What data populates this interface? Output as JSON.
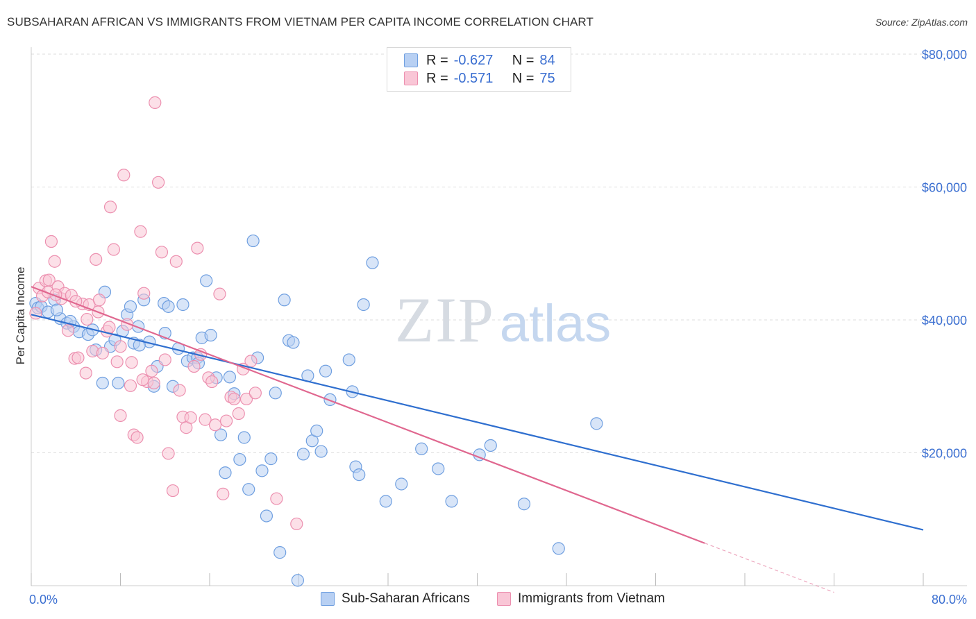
{
  "title": "SUBSAHARAN AFRICAN VS IMMIGRANTS FROM VIETNAM PER CAPITA INCOME CORRELATION CHART",
  "source": "Source: ZipAtlas.com",
  "watermark": {
    "zip": "ZIP",
    "atlas": "atlas"
  },
  "legend": {
    "rows": [
      {
        "r_label": "R =",
        "r_value": "-0.627",
        "n_label": "N =",
        "n_value": "84"
      },
      {
        "r_label": "R =",
        "r_value": "-0.571",
        "n_label": "N =",
        "n_value": "75"
      }
    ]
  },
  "colors": {
    "blue_fill": "#b8d0f3",
    "blue_stroke": "#6f9fe0",
    "blue_line": "#2f6fcf",
    "pink_fill": "#f9c6d6",
    "pink_stroke": "#ec8faf",
    "pink_line": "#e0678f",
    "axis_text": "#3b6fd1",
    "grid": "#dddddd"
  },
  "chart_data": {
    "type": "scatter",
    "title": "SUBSAHARAN AFRICAN VS IMMIGRANTS FROM VIETNAM PER CAPITA INCOME CORRELATION CHART",
    "xlabel": "",
    "ylabel": "Per Capita Income",
    "xlim": [
      0,
      80
    ],
    "ylim": [
      0,
      80000
    ],
    "x_tick_labels": [
      "0.0%",
      "80.0%"
    ],
    "y_ticks": [
      20000,
      40000,
      60000,
      80000
    ],
    "y_tick_labels": [
      "$20,000",
      "$40,000",
      "$60,000",
      "$80,000"
    ],
    "grid": true,
    "series": [
      {
        "name": "Sub-Saharan Africans",
        "color": "blue",
        "r": -0.627,
        "n": 84,
        "trend": {
          "x": [
            0,
            80
          ],
          "y": [
            40800,
            8400
          ]
        },
        "points": [
          [
            0.4,
            42500
          ],
          [
            0.6,
            41800
          ],
          [
            0.9,
            42000
          ],
          [
            1.5,
            41200
          ],
          [
            2.1,
            43000
          ],
          [
            2.6,
            40200
          ],
          [
            3.2,
            39500
          ],
          [
            3.8,
            39000
          ],
          [
            4.3,
            38200
          ],
          [
            5.1,
            37800
          ],
          [
            5.8,
            35500
          ],
          [
            6.4,
            30500
          ],
          [
            6.6,
            44200
          ],
          [
            7.1,
            36000
          ],
          [
            7.5,
            37000
          ],
          [
            7.8,
            30500
          ],
          [
            8.2,
            38300
          ],
          [
            8.6,
            40800
          ],
          [
            8.9,
            42000
          ],
          [
            9.2,
            36500
          ],
          [
            9.6,
            39000
          ],
          [
            10.1,
            43000
          ],
          [
            10.6,
            36700
          ],
          [
            11.0,
            30000
          ],
          [
            11.3,
            33000
          ],
          [
            11.9,
            42500
          ],
          [
            12.3,
            42000
          ],
          [
            12.7,
            30000
          ],
          [
            13.2,
            35700
          ],
          [
            13.6,
            42300
          ],
          [
            14.0,
            33800
          ],
          [
            14.5,
            34300
          ],
          [
            14.9,
            34300
          ],
          [
            15.3,
            37300
          ],
          [
            15.7,
            45900
          ],
          [
            16.1,
            37700
          ],
          [
            16.6,
            31300
          ],
          [
            17.0,
            22700
          ],
          [
            17.4,
            17000
          ],
          [
            17.8,
            31400
          ],
          [
            18.2,
            28900
          ],
          [
            18.7,
            19000
          ],
          [
            19.1,
            22300
          ],
          [
            19.5,
            14500
          ],
          [
            19.9,
            51900
          ],
          [
            20.3,
            34300
          ],
          [
            20.7,
            17300
          ],
          [
            21.1,
            10500
          ],
          [
            21.5,
            19100
          ],
          [
            21.9,
            29000
          ],
          [
            22.3,
            5000
          ],
          [
            22.7,
            43000
          ],
          [
            23.1,
            36900
          ],
          [
            23.5,
            36600
          ],
          [
            23.9,
            800
          ],
          [
            24.4,
            19800
          ],
          [
            24.8,
            31600
          ],
          [
            25.2,
            21800
          ],
          [
            25.6,
            23300
          ],
          [
            26.0,
            20200
          ],
          [
            26.4,
            32300
          ],
          [
            26.8,
            28000
          ],
          [
            28.5,
            34000
          ],
          [
            28.8,
            29200
          ],
          [
            29.1,
            17900
          ],
          [
            29.4,
            16700
          ],
          [
            29.8,
            42300
          ],
          [
            30.6,
            48600
          ],
          [
            31.8,
            12700
          ],
          [
            33.2,
            15300
          ],
          [
            35.0,
            20600
          ],
          [
            36.5,
            17600
          ],
          [
            37.7,
            12700
          ],
          [
            40.2,
            19700
          ],
          [
            41.2,
            21100
          ],
          [
            44.2,
            12300
          ],
          [
            47.3,
            5600
          ],
          [
            50.7,
            24400
          ],
          [
            2.3,
            41500
          ],
          [
            3.5,
            39800
          ],
          [
            5.5,
            38500
          ],
          [
            9.7,
            36200
          ],
          [
            12.0,
            38000
          ],
          [
            15.0,
            33500
          ]
        ]
      },
      {
        "name": "Immigrants from Vietnam",
        "color": "pink",
        "r": -0.571,
        "n": 75,
        "trend": {
          "x": [
            0,
            60.4
          ],
          "y": [
            45000,
            6400
          ]
        },
        "trend_dashed": {
          "x": [
            60.4,
            72.0
          ],
          "y": [
            6400,
            -1000
          ]
        },
        "points": [
          [
            0.4,
            41000
          ],
          [
            0.7,
            44800
          ],
          [
            1.0,
            43600
          ],
          [
            1.3,
            45900
          ],
          [
            1.6,
            46000
          ],
          [
            1.8,
            51800
          ],
          [
            2.1,
            48800
          ],
          [
            2.4,
            45000
          ],
          [
            2.7,
            43200
          ],
          [
            3.0,
            44000
          ],
          [
            3.3,
            38400
          ],
          [
            3.6,
            43700
          ],
          [
            3.9,
            34200
          ],
          [
            4.2,
            34300
          ],
          [
            4.6,
            42400
          ],
          [
            4.9,
            32000
          ],
          [
            5.2,
            42300
          ],
          [
            5.5,
            35300
          ],
          [
            5.8,
            49100
          ],
          [
            6.1,
            43000
          ],
          [
            6.4,
            35000
          ],
          [
            6.8,
            38300
          ],
          [
            7.1,
            57000
          ],
          [
            7.4,
            50600
          ],
          [
            7.7,
            33700
          ],
          [
            8.0,
            25600
          ],
          [
            8.3,
            61800
          ],
          [
            8.6,
            39300
          ],
          [
            8.9,
            30100
          ],
          [
            9.2,
            22700
          ],
          [
            9.5,
            22300
          ],
          [
            9.8,
            53300
          ],
          [
            10.1,
            44000
          ],
          [
            10.4,
            30700
          ],
          [
            10.8,
            32300
          ],
          [
            11.1,
            72700
          ],
          [
            11.4,
            60700
          ],
          [
            11.7,
            50200
          ],
          [
            12.0,
            34000
          ],
          [
            12.3,
            19900
          ],
          [
            12.7,
            14300
          ],
          [
            13.0,
            48800
          ],
          [
            13.3,
            29400
          ],
          [
            13.6,
            25400
          ],
          [
            13.9,
            23800
          ],
          [
            14.3,
            25300
          ],
          [
            14.6,
            33000
          ],
          [
            14.9,
            50800
          ],
          [
            15.2,
            34800
          ],
          [
            15.6,
            25000
          ],
          [
            15.9,
            31300
          ],
          [
            16.2,
            30700
          ],
          [
            16.5,
            24200
          ],
          [
            16.9,
            43900
          ],
          [
            17.2,
            13800
          ],
          [
            17.5,
            24800
          ],
          [
            17.9,
            28400
          ],
          [
            18.2,
            28100
          ],
          [
            18.6,
            25900
          ],
          [
            19.0,
            32600
          ],
          [
            19.3,
            28100
          ],
          [
            19.7,
            33800
          ],
          [
            20.1,
            29000
          ],
          [
            22.0,
            13100
          ],
          [
            23.8,
            9300
          ],
          [
            1.5,
            44200
          ],
          [
            2.2,
            43800
          ],
          [
            4.0,
            42800
          ],
          [
            5.0,
            40100
          ],
          [
            6.0,
            41200
          ],
          [
            7.0,
            38900
          ],
          [
            8.0,
            36000
          ],
          [
            9.0,
            33600
          ],
          [
            10.0,
            31000
          ],
          [
            11.0,
            30500
          ]
        ]
      }
    ]
  },
  "bottom_legend": [
    "Sub-Saharan Africans",
    "Immigrants from Vietnam"
  ]
}
